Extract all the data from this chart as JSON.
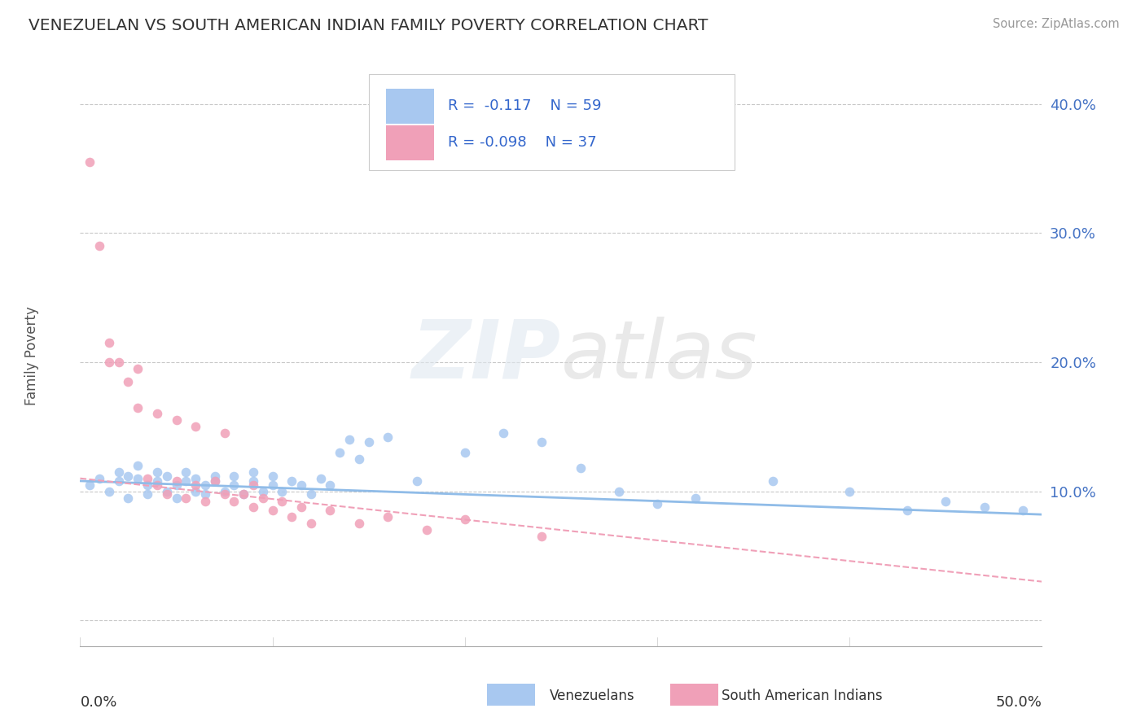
{
  "title": "VENEZUELAN VS SOUTH AMERICAN INDIAN FAMILY POVERTY CORRELATION CHART",
  "source": "Source: ZipAtlas.com",
  "ylabel": "Family Poverty",
  "xlim": [
    0.0,
    0.5
  ],
  "ylim": [
    -0.02,
    0.43
  ],
  "yticks": [
    0.0,
    0.1,
    0.2,
    0.3,
    0.4
  ],
  "ytick_labels": [
    "",
    "10.0%",
    "20.0%",
    "30.0%",
    "40.0%"
  ],
  "grid_color": "#c8c8c8",
  "background_color": "#ffffff",
  "blue_color": "#a8c8f0",
  "pink_color": "#f0a0b8",
  "blue_R": "-0.117",
  "blue_N": "59",
  "pink_R": "-0.098",
  "pink_N": "37",
  "legend_label_blue": "Venezuelans",
  "legend_label_pink": "South American Indians",
  "blue_line_start_y": 0.108,
  "blue_line_end_y": 0.082,
  "pink_line_start_y": 0.11,
  "pink_line_end_y": 0.03,
  "blue_scatter_x": [
    0.005,
    0.01,
    0.015,
    0.02,
    0.02,
    0.025,
    0.025,
    0.03,
    0.03,
    0.035,
    0.035,
    0.04,
    0.04,
    0.045,
    0.045,
    0.05,
    0.05,
    0.055,
    0.055,
    0.06,
    0.06,
    0.065,
    0.065,
    0.07,
    0.07,
    0.075,
    0.08,
    0.08,
    0.085,
    0.09,
    0.09,
    0.095,
    0.1,
    0.1,
    0.105,
    0.11,
    0.115,
    0.12,
    0.125,
    0.13,
    0.135,
    0.14,
    0.145,
    0.15,
    0.16,
    0.175,
    0.2,
    0.22,
    0.24,
    0.26,
    0.28,
    0.3,
    0.32,
    0.36,
    0.4,
    0.43,
    0.45,
    0.47,
    0.49
  ],
  "blue_scatter_y": [
    0.105,
    0.11,
    0.1,
    0.108,
    0.115,
    0.112,
    0.095,
    0.11,
    0.12,
    0.105,
    0.098,
    0.108,
    0.115,
    0.1,
    0.112,
    0.105,
    0.095,
    0.108,
    0.115,
    0.1,
    0.11,
    0.105,
    0.098,
    0.112,
    0.108,
    0.1,
    0.105,
    0.112,
    0.098,
    0.108,
    0.115,
    0.1,
    0.105,
    0.112,
    0.1,
    0.108,
    0.105,
    0.098,
    0.11,
    0.105,
    0.13,
    0.14,
    0.125,
    0.138,
    0.142,
    0.108,
    0.13,
    0.145,
    0.138,
    0.118,
    0.1,
    0.09,
    0.095,
    0.108,
    0.1,
    0.085,
    0.092,
    0.088,
    0.085
  ],
  "pink_scatter_x": [
    0.005,
    0.01,
    0.015,
    0.015,
    0.02,
    0.025,
    0.03,
    0.03,
    0.035,
    0.04,
    0.04,
    0.045,
    0.05,
    0.05,
    0.055,
    0.06,
    0.06,
    0.065,
    0.07,
    0.075,
    0.075,
    0.08,
    0.085,
    0.09,
    0.09,
    0.095,
    0.1,
    0.105,
    0.11,
    0.115,
    0.12,
    0.13,
    0.145,
    0.16,
    0.18,
    0.2,
    0.24
  ],
  "pink_scatter_y": [
    0.355,
    0.29,
    0.2,
    0.215,
    0.2,
    0.185,
    0.165,
    0.195,
    0.11,
    0.105,
    0.16,
    0.098,
    0.108,
    0.155,
    0.095,
    0.105,
    0.15,
    0.092,
    0.108,
    0.098,
    0.145,
    0.092,
    0.098,
    0.105,
    0.088,
    0.095,
    0.085,
    0.092,
    0.08,
    0.088,
    0.075,
    0.085,
    0.075,
    0.08,
    0.07,
    0.078,
    0.065
  ]
}
